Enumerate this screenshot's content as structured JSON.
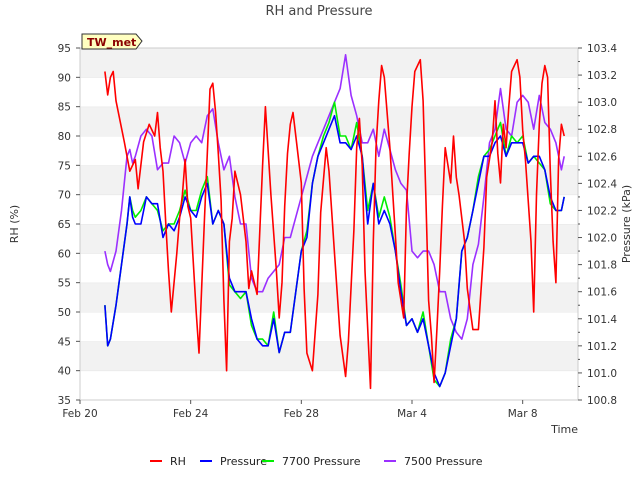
{
  "chart_data": {
    "type": "line",
    "title": "RH and Pressure",
    "badge": "TW_met",
    "xlabel": "Time",
    "ylabel": "RH (%)",
    "y2label": "Pressure (kPa)",
    "x_ticks": [
      {
        "label": "Feb 20",
        "day": 0
      },
      {
        "label": "Feb 24",
        "day": 4
      },
      {
        "label": "Feb 28",
        "day": 8
      },
      {
        "label": "Mar 4",
        "day": 12
      },
      {
        "label": "Mar 8",
        "day": 16
      }
    ],
    "xlim": [
      0,
      18
    ],
    "ylim": [
      35,
      95
    ],
    "y_ticks": [
      35,
      40,
      45,
      50,
      55,
      60,
      65,
      70,
      75,
      80,
      85,
      90,
      95
    ],
    "y2lim": [
      100.8,
      103.4
    ],
    "y2_ticks": [
      100.8,
      101.0,
      101.2,
      101.4,
      101.6,
      101.8,
      102.0,
      102.2,
      102.4,
      102.6,
      102.8,
      103.0,
      103.2,
      103.4
    ],
    "grid": "horizontal bands",
    "legend_position": "bottom",
    "series": [
      {
        "name": "RH",
        "color": "#ff0000",
        "axis": "left",
        "x": [
          0.9,
          1.0,
          1.1,
          1.2,
          1.3,
          1.6,
          1.8,
          2.0,
          2.1,
          2.3,
          2.5,
          2.7,
          2.8,
          2.9,
          3.0,
          3.1,
          3.2,
          3.3,
          3.5,
          3.6,
          3.7,
          3.8,
          3.9,
          4.0,
          4.2,
          4.3,
          4.5,
          4.6,
          4.7,
          4.8,
          4.9,
          5.0,
          5.1,
          5.2,
          5.3,
          5.4,
          5.5,
          5.6,
          5.8,
          6.0,
          6.1,
          6.2,
          6.4,
          6.6,
          6.7,
          6.9,
          7.1,
          7.2,
          7.3,
          7.4,
          7.5,
          7.6,
          7.7,
          7.8,
          8.0,
          8.1,
          8.2,
          8.4,
          8.6,
          8.7,
          8.9,
          9.0,
          9.2,
          9.4,
          9.6,
          9.7,
          9.9,
          10.0,
          10.1,
          10.2,
          10.3,
          10.5,
          10.6,
          10.7,
          10.8,
          10.9,
          11.0,
          11.2,
          11.4,
          11.5,
          11.7,
          11.8,
          11.9,
          12.0,
          12.1,
          12.3,
          12.4,
          12.5,
          12.6,
          12.7,
          12.8,
          12.9,
          13.0,
          13.1,
          13.2,
          13.4,
          13.5,
          13.6,
          13.7,
          13.9,
          14.0,
          14.2,
          14.4,
          14.6,
          14.7,
          14.9,
          15.0,
          15.1,
          15.2,
          15.3,
          15.4,
          15.5,
          15.6,
          15.8,
          15.9,
          16.0,
          16.1,
          16.2,
          16.3,
          16.4,
          16.5,
          16.6,
          16.7,
          16.8,
          16.9,
          17.0,
          17.1,
          17.2,
          17.3,
          17.4,
          17.5
        ],
        "values": [
          91,
          87,
          90,
          91,
          86,
          79,
          74,
          76,
          71,
          79,
          82,
          80,
          84,
          78,
          74,
          65,
          57,
          50,
          60,
          66,
          70,
          76,
          68,
          66,
          50,
          43,
          66,
          77,
          88,
          89,
          84,
          77,
          69,
          52,
          40,
          62,
          66,
          74,
          70,
          62,
          54,
          57,
          53,
          75,
          85,
          70,
          57,
          49,
          55,
          68,
          77,
          82,
          84,
          80,
          72,
          54,
          43,
          40,
          53,
          67,
          78,
          74,
          60,
          46,
          39,
          45,
          64,
          78,
          83,
          75,
          57,
          37,
          62,
          78,
          86,
          92,
          90,
          78,
          63,
          55,
          49,
          68,
          77,
          85,
          91,
          93,
          86,
          70,
          52,
          46,
          38,
          47,
          57,
          68,
          78,
          72,
          80,
          73,
          70,
          62,
          54,
          47,
          47,
          61,
          73,
          79,
          86,
          77,
          72,
          82,
          78,
          85,
          91,
          93,
          90,
          81,
          76,
          69,
          62,
          50,
          70,
          82,
          89,
          92,
          90,
          74,
          62,
          55,
          76,
          82,
          80
        ]
      },
      {
        "name": "Pressure",
        "color": "#0000ff",
        "axis": "right",
        "x": [
          0.9,
          1.0,
          1.1,
          1.3,
          1.5,
          1.7,
          1.8,
          1.9,
          2.0,
          2.2,
          2.4,
          2.6,
          2.8,
          3.0,
          3.2,
          3.4,
          3.6,
          3.8,
          4.0,
          4.2,
          4.4,
          4.6,
          4.8,
          5.0,
          5.2,
          5.4,
          5.6,
          5.8,
          6.0,
          6.2,
          6.4,
          6.6,
          6.8,
          7.0,
          7.2,
          7.4,
          7.6,
          7.8,
          8.0,
          8.2,
          8.4,
          8.6,
          8.8,
          9.0,
          9.2,
          9.4,
          9.6,
          9.8,
          10.0,
          10.2,
          10.4,
          10.6,
          10.8,
          11.0,
          11.2,
          11.4,
          11.6,
          11.8,
          12.0,
          12.2,
          12.4,
          12.6,
          12.8,
          13.0,
          13.2,
          13.4,
          13.6,
          13.8,
          14.0,
          14.2,
          14.4,
          14.6,
          14.8,
          15.0,
          15.2,
          15.4,
          15.6,
          15.8,
          16.0,
          16.2,
          16.4,
          16.6,
          16.8,
          17.0,
          17.2,
          17.4,
          17.5
        ],
        "values": [
          101.5,
          101.2,
          101.25,
          101.5,
          101.8,
          102.1,
          102.3,
          102.15,
          102.1,
          102.1,
          102.3,
          102.25,
          102.25,
          102.0,
          102.1,
          102.05,
          102.15,
          102.3,
          102.2,
          102.15,
          102.3,
          102.4,
          102.1,
          102.2,
          102.1,
          101.7,
          101.6,
          101.6,
          101.6,
          101.4,
          101.25,
          101.2,
          101.2,
          101.4,
          101.15,
          101.3,
          101.3,
          101.6,
          101.9,
          102.0,
          102.4,
          102.6,
          102.7,
          102.8,
          102.9,
          102.7,
          102.7,
          102.65,
          102.75,
          102.6,
          102.1,
          102.4,
          102.1,
          102.2,
          102.1,
          101.9,
          101.6,
          101.35,
          101.4,
          101.3,
          101.4,
          101.2,
          101.0,
          100.9,
          101.0,
          101.2,
          101.4,
          101.9,
          102.0,
          102.2,
          102.4,
          102.6,
          102.6,
          102.7,
          102.75,
          102.6,
          102.7,
          102.7,
          102.7,
          102.55,
          102.6,
          102.6,
          102.5,
          102.3,
          102.2,
          102.2,
          102.3
        ]
      },
      {
        "name": "7700 Pressure",
        "color": "#00ee00",
        "axis": "right",
        "x": [
          0.9,
          1.0,
          1.1,
          1.3,
          1.5,
          1.7,
          1.8,
          1.9,
          2.0,
          2.2,
          2.4,
          2.6,
          2.8,
          3.0,
          3.2,
          3.4,
          3.6,
          3.8,
          4.0,
          4.2,
          4.4,
          4.6,
          4.8,
          5.0,
          5.2,
          5.4,
          5.6,
          5.8,
          6.0,
          6.2,
          6.4,
          6.6,
          6.8,
          7.0,
          7.2,
          7.4,
          7.6,
          7.8,
          8.0,
          8.2,
          8.4,
          8.6,
          8.8,
          9.0,
          9.2,
          9.4,
          9.6,
          9.8,
          10.0,
          10.2,
          10.4,
          10.6,
          10.8,
          11.0,
          11.2,
          11.4,
          11.6,
          11.8,
          12.0,
          12.2,
          12.4,
          12.6,
          12.8,
          13.0,
          13.2,
          13.4,
          13.6,
          13.8,
          14.0,
          14.2,
          14.4,
          14.6,
          14.8,
          15.0,
          15.2,
          15.4,
          15.6,
          15.8,
          16.0,
          16.2,
          16.4,
          16.6,
          16.8,
          17.0,
          17.2,
          17.4,
          17.5
        ],
        "values": [
          101.5,
          101.2,
          101.25,
          101.5,
          101.8,
          102.1,
          102.3,
          102.2,
          102.15,
          102.2,
          102.3,
          102.25,
          102.2,
          102.05,
          102.1,
          102.1,
          102.2,
          102.35,
          102.2,
          102.2,
          102.35,
          102.45,
          102.1,
          102.2,
          102.1,
          101.65,
          101.6,
          101.55,
          101.6,
          101.35,
          101.25,
          101.25,
          101.2,
          101.45,
          101.15,
          101.3,
          101.3,
          101.6,
          101.9,
          102.05,
          102.4,
          102.6,
          102.75,
          102.85,
          103.0,
          102.75,
          102.75,
          102.65,
          102.85,
          102.6,
          102.2,
          102.4,
          102.15,
          102.3,
          102.15,
          101.9,
          101.65,
          101.35,
          101.4,
          101.3,
          101.45,
          101.2,
          100.95,
          100.9,
          101.0,
          101.25,
          101.4,
          101.9,
          102.0,
          102.2,
          102.45,
          102.6,
          102.65,
          102.75,
          102.85,
          102.6,
          102.75,
          102.7,
          102.75,
          102.55,
          102.6,
          102.55,
          102.5,
          102.25,
          102.2,
          102.2,
          102.3
        ]
      },
      {
        "name": "7500 Pressure",
        "color": "#9b30ff",
        "axis": "right",
        "x": [
          0.9,
          1.0,
          1.1,
          1.3,
          1.5,
          1.7,
          1.8,
          1.9,
          2.0,
          2.2,
          2.4,
          2.6,
          2.8,
          3.0,
          3.2,
          3.4,
          3.6,
          3.8,
          4.0,
          4.2,
          4.4,
          4.6,
          4.8,
          5.0,
          5.2,
          5.4,
          5.6,
          5.8,
          6.0,
          6.2,
          6.4,
          6.6,
          6.8,
          7.0,
          7.2,
          7.4,
          7.6,
          7.8,
          8.0,
          8.2,
          8.4,
          8.6,
          8.8,
          9.0,
          9.2,
          9.4,
          9.6,
          9.8,
          10.0,
          10.2,
          10.4,
          10.6,
          10.8,
          11.0,
          11.2,
          11.4,
          11.6,
          11.8,
          12.0,
          12.2,
          12.4,
          12.6,
          12.8,
          13.0,
          13.2,
          13.4,
          13.6,
          13.8,
          14.0,
          14.2,
          14.4,
          14.6,
          14.8,
          15.0,
          15.2,
          15.4,
          15.6,
          15.8,
          16.0,
          16.2,
          16.4,
          16.6,
          16.8,
          17.0,
          17.2,
          17.4,
          17.5
        ],
        "values": [
          101.9,
          101.8,
          101.75,
          101.9,
          102.2,
          102.6,
          102.65,
          102.55,
          102.6,
          102.75,
          102.8,
          102.75,
          102.5,
          102.55,
          102.55,
          102.75,
          102.7,
          102.55,
          102.7,
          102.75,
          102.7,
          102.9,
          102.95,
          102.7,
          102.5,
          102.6,
          102.3,
          102.1,
          102.1,
          101.7,
          101.6,
          101.6,
          101.7,
          101.75,
          101.8,
          102.0,
          102.0,
          102.15,
          102.3,
          102.45,
          102.6,
          102.7,
          102.8,
          102.9,
          103.0,
          103.1,
          103.35,
          103.05,
          102.9,
          102.7,
          102.7,
          102.8,
          102.6,
          102.8,
          102.65,
          102.5,
          102.4,
          102.35,
          101.9,
          101.85,
          101.9,
          101.9,
          101.8,
          101.6,
          101.6,
          101.4,
          101.3,
          101.25,
          101.4,
          101.8,
          101.95,
          102.3,
          102.7,
          102.8,
          103.1,
          102.8,
          102.75,
          103.0,
          103.05,
          103.0,
          102.8,
          103.05,
          102.85,
          102.8,
          102.7,
          102.5,
          102.6
        ]
      }
    ]
  }
}
